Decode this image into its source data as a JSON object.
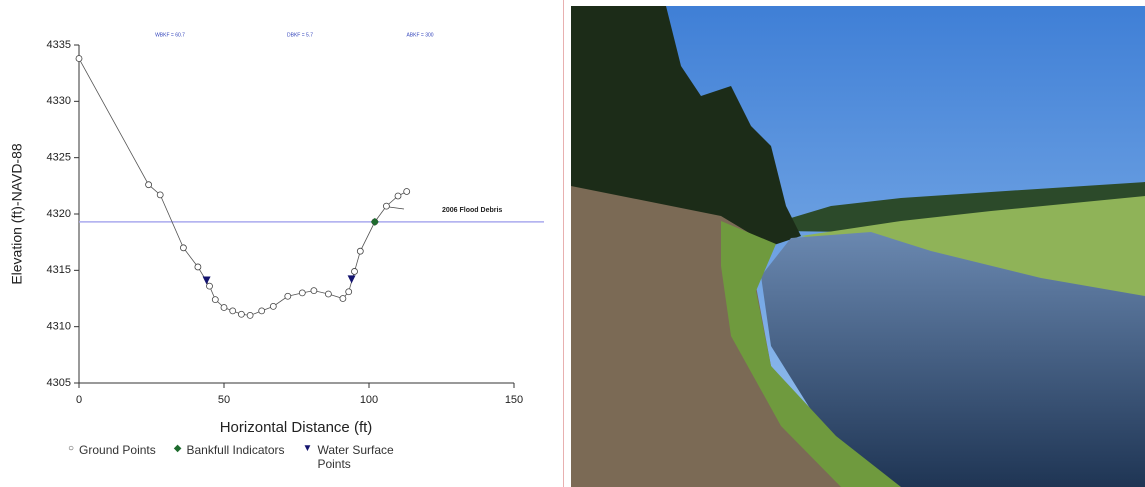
{
  "chart_data": {
    "type": "line",
    "xlabel": "Horizontal Distance (ft)",
    "ylabel": "Elevation (ft)-NAVD-88",
    "annotations": [
      "WBKF = 60.7",
      "DBKF = 5.7",
      "ABKF = 300"
    ],
    "callout": "2006 Flood Debris",
    "xlim": [
      0,
      150
    ],
    "xticks": [
      0,
      50,
      100,
      150
    ],
    "ylim": [
      4305,
      4335
    ],
    "yticks": [
      4305,
      4310,
      4315,
      4320,
      4325,
      4330,
      4335
    ],
    "bankfull_elevation": 4319.3,
    "bankfull_line_color": "#aaaaee",
    "series": [
      {
        "name": "Ground Points",
        "color": "#444444",
        "marker": "circle",
        "x": [
          0,
          24,
          28,
          36,
          41,
          45,
          47,
          50,
          53,
          56,
          59,
          63,
          67,
          72,
          77,
          81,
          86,
          91,
          93,
          95,
          97,
          102,
          106,
          110,
          113
        ],
        "values": [
          4333.8,
          4322.6,
          4321.7,
          4317.0,
          4315.3,
          4313.6,
          4312.4,
          4311.7,
          4311.4,
          4311.1,
          4311.0,
          4311.4,
          4311.8,
          4312.7,
          4313.0,
          4313.2,
          4312.9,
          4312.5,
          4313.1,
          4314.9,
          4316.7,
          4319.3,
          4320.7,
          4321.6,
          4322.0
        ]
      },
      {
        "name": "Bankfull Indicators",
        "color": "#1e6b2e",
        "marker": "diamond",
        "x": [
          102
        ],
        "values": [
          4319.3
        ]
      },
      {
        "name": "Water Surface Points",
        "color": "#14146e",
        "marker": "triangle",
        "x": [
          44,
          94
        ],
        "values": [
          4314.1,
          4314.2
        ]
      }
    ]
  }
}
